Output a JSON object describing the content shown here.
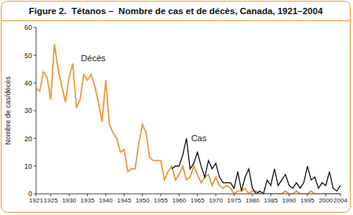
{
  "chart_data": {
    "type": "line",
    "title": "Figure 2.  Tétanos –  Nombre de cas et de décès, Canada, 1921–2004",
    "ylabel": "Nombre de cas/décès",
    "x": [
      1921,
      1922,
      1923,
      1924,
      1925,
      1926,
      1927,
      1928,
      1929,
      1930,
      1931,
      1932,
      1933,
      1934,
      1935,
      1936,
      1937,
      1938,
      1939,
      1940,
      1941,
      1942,
      1943,
      1944,
      1945,
      1946,
      1947,
      1948,
      1949,
      1950,
      1951,
      1952,
      1953,
      1954,
      1955,
      1956,
      1957,
      1958,
      1959,
      1960,
      1961,
      1962,
      1963,
      1964,
      1965,
      1966,
      1967,
      1968,
      1969,
      1970,
      1971,
      1972,
      1973,
      1974,
      1975,
      1976,
      1977,
      1978,
      1979,
      1980,
      1981,
      1982,
      1983,
      1984,
      1985,
      1986,
      1987,
      1988,
      1989,
      1990,
      1991,
      1992,
      1993,
      1994,
      1995,
      1996,
      1997,
      1998,
      1999,
      2000,
      2001,
      2002,
      2003,
      2004
    ],
    "series": [
      {
        "name": "Décès",
        "color": "#e89a3c",
        "values": [
          38,
          37,
          44,
          42,
          34,
          54,
          45,
          39,
          33,
          42,
          47,
          31,
          34,
          43,
          41,
          43,
          39,
          33,
          26,
          41,
          25,
          22,
          20,
          15,
          16,
          8,
          9,
          9,
          18,
          25,
          22,
          13,
          12,
          12,
          12,
          5,
          8,
          10,
          5,
          7,
          10,
          5,
          6,
          10,
          7,
          4,
          6,
          7,
          3,
          6,
          3,
          2,
          3,
          2,
          0,
          1,
          1,
          2,
          0,
          1,
          1,
          0,
          0,
          0,
          0,
          0,
          0,
          0,
          1,
          0,
          0,
          1,
          0,
          0,
          0,
          1,
          0,
          0,
          0,
          0,
          0,
          0,
          0,
          0
        ]
      },
      {
        "name": "Cas",
        "color": "#000000",
        "values": [
          null,
          null,
          null,
          null,
          null,
          null,
          null,
          null,
          null,
          null,
          null,
          null,
          null,
          null,
          null,
          null,
          null,
          null,
          null,
          null,
          null,
          null,
          null,
          null,
          null,
          null,
          null,
          null,
          null,
          null,
          null,
          null,
          null,
          null,
          null,
          null,
          null,
          9,
          10,
          10,
          14,
          20,
          9,
          11,
          15,
          10,
          6,
          12,
          9,
          11,
          6,
          4,
          4,
          4,
          2,
          8,
          1,
          6,
          9,
          2,
          0,
          1,
          0,
          5,
          3,
          9,
          3,
          5,
          7,
          3,
          2,
          4,
          2,
          4,
          10,
          5,
          6,
          2,
          4,
          3,
          8,
          2,
          1,
          3
        ]
      }
    ],
    "xlim": [
      1921,
      2004
    ],
    "xticks": [
      1921,
      1925,
      1930,
      1935,
      1940,
      1945,
      1950,
      1955,
      1960,
      1965,
      1970,
      1975,
      1980,
      1985,
      1990,
      1995,
      2000,
      2004
    ],
    "ylim": [
      0,
      60
    ],
    "yticks": [
      0,
      10,
      20,
      30,
      40,
      50,
      60
    ],
    "grid": false
  }
}
